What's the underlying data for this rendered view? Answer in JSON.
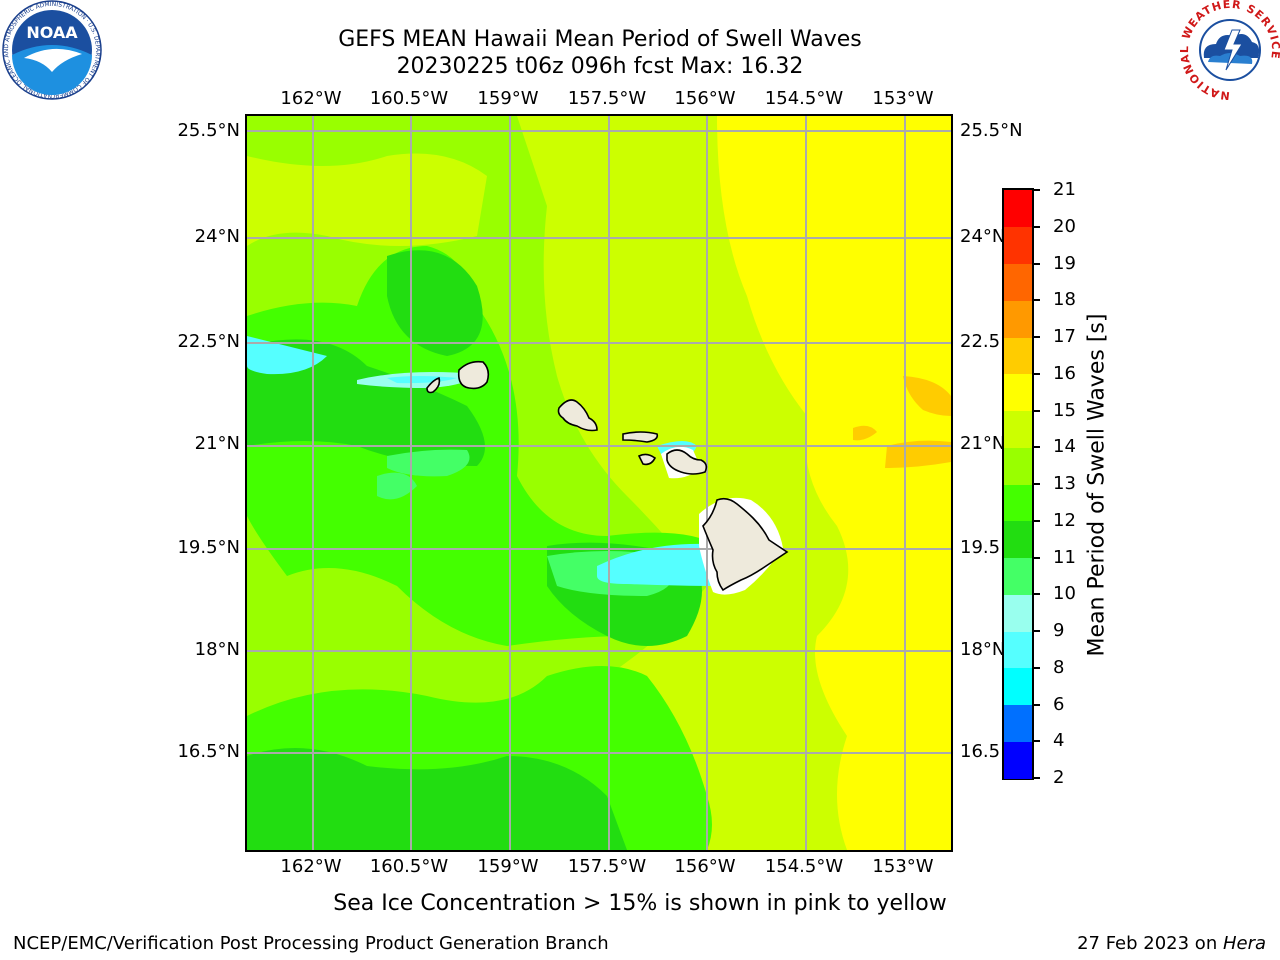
{
  "title": {
    "line1": "GEFS MEAN Hawaii Mean Period of Swell Waves",
    "line2": "20230225 t06z 096h fcst   Max: 16.32"
  },
  "map": {
    "lon_ticks": [
      "162°W",
      "160.5°W",
      "159°W",
      "157.5°W",
      "156°W",
      "154.5°W",
      "153°W"
    ],
    "lat_ticks": [
      "25.5°N",
      "24°N",
      "22.5°N",
      "21°N",
      "19.5°N",
      "18°N",
      "16.5°N"
    ],
    "lat_ticks_right": [
      "25.5°N",
      "24°N",
      "22.5",
      "21°N",
      "19.5",
      "18°N",
      "16.5"
    ],
    "grid": true,
    "islands": [
      "Kauai",
      "Niihau",
      "Oahu",
      "Molokai",
      "Lanai",
      "Maui",
      "Hawaii"
    ]
  },
  "colorbar": {
    "title": "Mean Period of Swell Waves [s]",
    "levels": [
      2,
      4,
      6,
      8,
      9,
      10,
      11,
      12,
      13,
      14,
      15,
      16,
      17,
      18,
      19,
      20,
      21
    ],
    "colors": [
      "#0000ff",
      "#0070ff",
      "#00ffff",
      "#55ffff",
      "#99ffee",
      "#44ff66",
      "#22dd11",
      "#44ff00",
      "#99ff00",
      "#ccff00",
      "#ffff00",
      "#ffcc00",
      "#ff9900",
      "#ff6600",
      "#ff3300",
      "#ff0000"
    ]
  },
  "footnote": "Sea Ice Concentration > 15% is shown in pink to yellow",
  "footer": {
    "left": "NCEP/EMC/Verification Post Processing Product Generation Branch",
    "right_text": "27 Feb 2023 on ",
    "right_host": "Hera"
  },
  "logos": {
    "left_text": "NOAA",
    "left_ring": "NATIONAL OCEANIC AND ATMOSPHERIC ADMINISTRATION · U.S. DEPARTMENT OF COMMERCE",
    "right_ring": "NATIONAL WEATHER SERVICE"
  }
}
